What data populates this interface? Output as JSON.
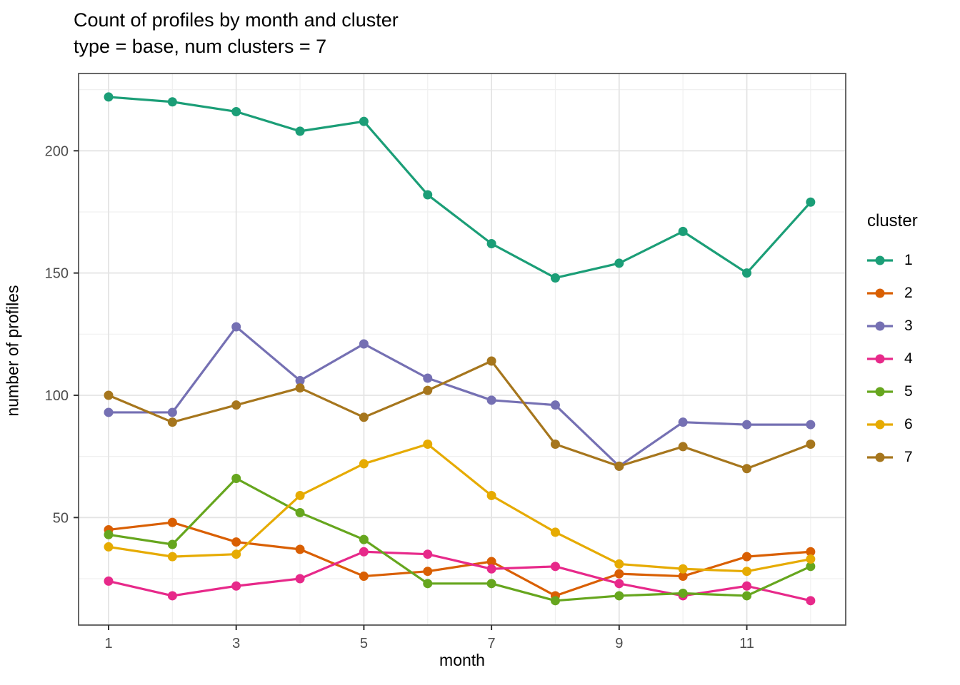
{
  "header": {
    "title": "Count of profiles by month and cluster",
    "subtitle": "type = base, num clusters = 7"
  },
  "axes": {
    "x_label": "month",
    "y_label": "number of profiles",
    "x_ticks": [
      1,
      3,
      5,
      7,
      9,
      11
    ],
    "y_ticks": [
      50,
      100,
      150,
      200
    ]
  },
  "legend": {
    "title": "cluster"
  },
  "colors": {
    "panel_border": "#4d4d4d",
    "grid_major": "#e4e4e4",
    "grid_minor": "#f0f0f0",
    "tick_mark": "#333333",
    "tick_label": "#4d4d4d",
    "background": "#ffffff"
  },
  "chart_data": {
    "type": "line",
    "title": "Count of profiles by month and cluster",
    "subtitle": "type = base, num clusters = 7",
    "xlabel": "month",
    "ylabel": "number of profiles",
    "x": [
      1,
      2,
      3,
      4,
      5,
      6,
      7,
      8,
      9,
      10,
      11,
      12
    ],
    "series": [
      {
        "name": "1",
        "color": "#1B9E77",
        "values": [
          222,
          220,
          216,
          208,
          212,
          182,
          162,
          148,
          154,
          167,
          150,
          179
        ]
      },
      {
        "name": "2",
        "color": "#D95F02",
        "values": [
          45,
          48,
          40,
          37,
          26,
          28,
          32,
          18,
          27,
          26,
          34,
          36
        ]
      },
      {
        "name": "3",
        "color": "#7570B3",
        "values": [
          93,
          93,
          128,
          106,
          121,
          107,
          98,
          96,
          71,
          89,
          88,
          88
        ]
      },
      {
        "name": "4",
        "color": "#E7298A",
        "values": [
          24,
          18,
          22,
          25,
          36,
          35,
          29,
          30,
          23,
          18,
          22,
          16
        ]
      },
      {
        "name": "5",
        "color": "#66A61E",
        "values": [
          43,
          39,
          66,
          52,
          41,
          23,
          23,
          16,
          18,
          19,
          18,
          30
        ]
      },
      {
        "name": "6",
        "color": "#E6AB02",
        "values": [
          38,
          34,
          35,
          59,
          72,
          80,
          59,
          44,
          31,
          29,
          28,
          33
        ]
      },
      {
        "name": "7",
        "color": "#A6761D",
        "values": [
          100,
          89,
          96,
          103,
          91,
          102,
          114,
          80,
          71,
          79,
          70,
          80
        ]
      }
    ],
    "xlim": [
      0.45,
      12.55
    ],
    "ylim": [
      6,
      232
    ],
    "x_major_ticks": [
      1,
      3,
      5,
      7,
      9,
      11
    ],
    "x_minor_ticks": [
      2,
      4,
      6,
      8,
      10,
      12
    ],
    "y_major_ticks": [
      50,
      100,
      150,
      200
    ],
    "y_minor_ticks": [
      25,
      75,
      125,
      175,
      225
    ],
    "grid": "major+minor",
    "legend_position": "right",
    "legend_title": "cluster"
  }
}
